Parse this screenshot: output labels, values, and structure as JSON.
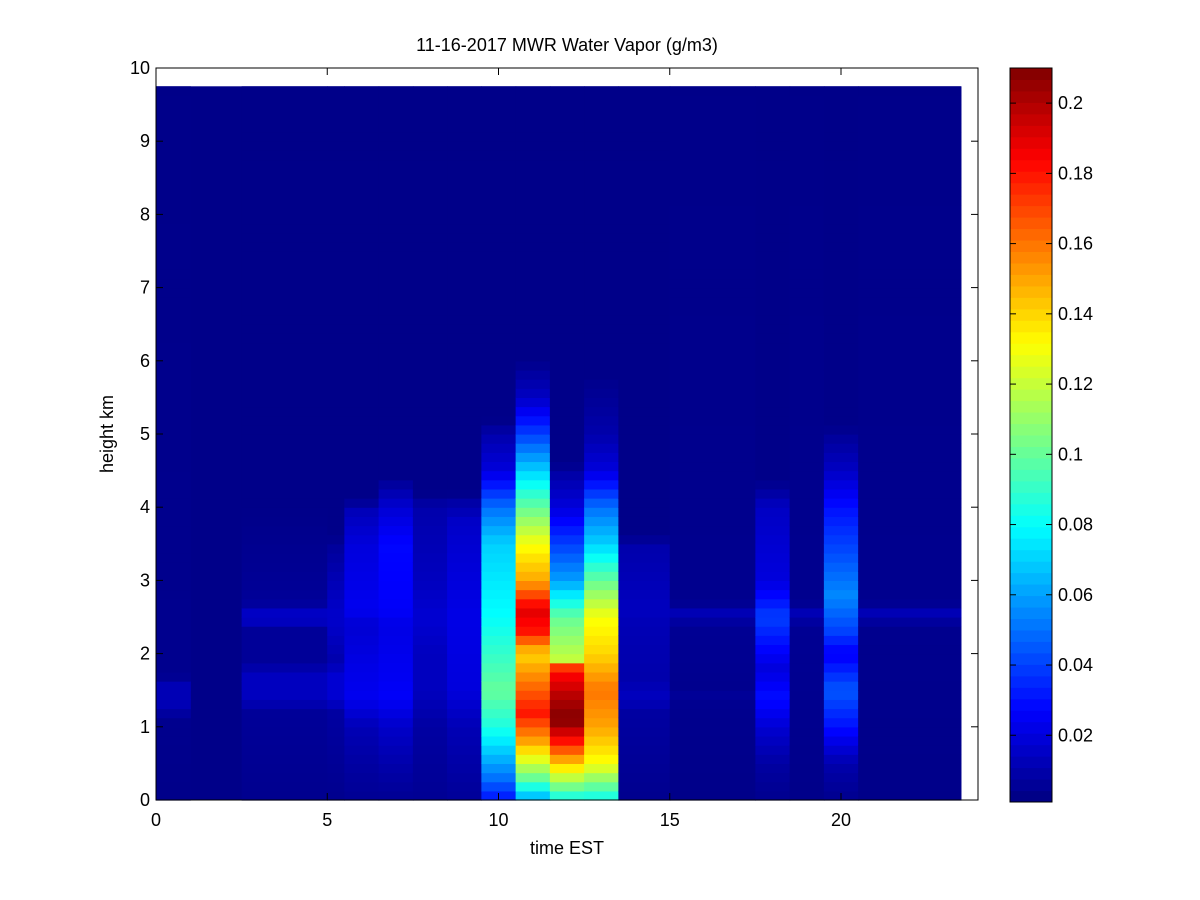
{
  "chart_data": {
    "type": "heatmap",
    "title": "11-16-2017 MWR Water Vapor (g/m3)",
    "xlabel": "time EST",
    "ylabel": "height km",
    "xlim": [
      0,
      24
    ],
    "ylim": [
      0,
      10
    ],
    "x_ticks": [
      "0",
      "5",
      "10",
      "15",
      "20"
    ],
    "y_ticks": [
      "0",
      "1",
      "2",
      "3",
      "4",
      "5",
      "6",
      "7",
      "8",
      "9",
      "10"
    ],
    "colorbar": {
      "range": [
        0.001,
        0.21
      ],
      "colormap": "jet",
      "ticks": [
        "0.02",
        "0.04",
        "0.06",
        "0.08",
        "0.1",
        "0.12",
        "0.14",
        "0.16",
        "0.18",
        "0.2"
      ]
    },
    "grid": false,
    "data_extent": {
      "x": [
        0,
        23.5
      ],
      "y": [
        0,
        9.75
      ]
    },
    "background_value": 0.003,
    "column_width_hours": 1,
    "band_profiles": [
      {
        "x": [
          0,
          1
        ],
        "profile": [
          [
            0,
            0.003
          ],
          [
            1.1,
            0.004
          ],
          [
            1.3,
            0.012
          ],
          [
            1.6,
            0.012
          ],
          [
            1.7,
            0.004
          ],
          [
            10,
            0.003
          ]
        ]
      },
      {
        "x": [
          2.5,
          5
        ],
        "profile": [
          [
            0,
            0.004
          ],
          [
            1.2,
            0.006
          ],
          [
            1.4,
            0.014
          ],
          [
            1.7,
            0.014
          ],
          [
            1.9,
            0.006
          ],
          [
            2.35,
            0.006
          ],
          [
            2.45,
            0.015
          ],
          [
            2.6,
            0.015
          ],
          [
            2.7,
            0.006
          ],
          [
            4,
            0.003
          ],
          [
            10,
            0.003
          ]
        ]
      },
      {
        "x": [
          5,
          5.5
        ],
        "profile": [
          [
            0,
            0.004
          ],
          [
            1.2,
            0.008
          ],
          [
            1.4,
            0.018
          ],
          [
            1.7,
            0.018
          ],
          [
            1.9,
            0.01
          ],
          [
            2.4,
            0.016
          ],
          [
            2.6,
            0.016
          ],
          [
            3,
            0.012
          ],
          [
            3.5,
            0.006
          ],
          [
            3.6,
            0.003
          ],
          [
            10,
            0.003
          ]
        ]
      },
      {
        "x": [
          5.5,
          6.5
        ],
        "profile": [
          [
            0,
            0.005
          ],
          [
            0.5,
            0.008
          ],
          [
            1,
            0.012
          ],
          [
            1.4,
            0.024
          ],
          [
            1.8,
            0.022
          ],
          [
            2.4,
            0.018
          ],
          [
            2.6,
            0.024
          ],
          [
            3.5,
            0.02
          ],
          [
            4,
            0.012
          ],
          [
            4.1,
            0.003
          ],
          [
            10,
            0.003
          ]
        ]
      },
      {
        "x": [
          6.5,
          7.5
        ],
        "profile": [
          [
            0,
            0.005
          ],
          [
            0.5,
            0.01
          ],
          [
            1,
            0.016
          ],
          [
            1.4,
            0.026
          ],
          [
            1.8,
            0.024
          ],
          [
            2.4,
            0.022
          ],
          [
            2.6,
            0.026
          ],
          [
            3.5,
            0.028
          ],
          [
            4,
            0.018
          ],
          [
            4.3,
            0.008
          ],
          [
            4.4,
            0.003
          ],
          [
            10,
            0.003
          ]
        ]
      },
      {
        "x": [
          7.5,
          8.5
        ],
        "profile": [
          [
            0,
            0.005
          ],
          [
            1,
            0.008
          ],
          [
            1.5,
            0.014
          ],
          [
            2,
            0.014
          ],
          [
            2.5,
            0.018
          ],
          [
            3,
            0.014
          ],
          [
            4,
            0.01
          ],
          [
            4.2,
            0.003
          ],
          [
            10,
            0.003
          ]
        ]
      },
      {
        "x": [
          8.5,
          9.5
        ],
        "profile": [
          [
            0,
            0.006
          ],
          [
            1,
            0.012
          ],
          [
            1.5,
            0.02
          ],
          [
            2.5,
            0.022
          ],
          [
            3,
            0.02
          ],
          [
            3.8,
            0.016
          ],
          [
            4.1,
            0.008
          ],
          [
            4.2,
            0.003
          ],
          [
            10,
            0.003
          ]
        ]
      },
      {
        "x": [
          9.5,
          10.5
        ],
        "profile": [
          [
            0,
            0.03
          ],
          [
            0.3,
            0.05
          ],
          [
            0.7,
            0.07
          ],
          [
            1,
            0.085
          ],
          [
            1.5,
            0.1
          ],
          [
            2,
            0.09
          ],
          [
            2.5,
            0.08
          ],
          [
            3.5,
            0.07
          ],
          [
            4,
            0.05
          ],
          [
            4.5,
            0.02
          ],
          [
            5,
            0.01
          ],
          [
            5.2,
            0.003
          ],
          [
            10,
            0.003
          ]
        ]
      },
      {
        "x": [
          10.5,
          11.5
        ],
        "profile": [
          [
            0,
            0.06
          ],
          [
            0.3,
            0.1
          ],
          [
            0.8,
            0.15
          ],
          [
            1.2,
            0.18
          ],
          [
            1.6,
            0.16
          ],
          [
            2,
            0.14
          ],
          [
            2.3,
            0.18
          ],
          [
            2.6,
            0.19
          ],
          [
            3,
            0.15
          ],
          [
            3.5,
            0.13
          ],
          [
            4,
            0.1
          ],
          [
            4.5,
            0.07
          ],
          [
            5,
            0.04
          ],
          [
            5.5,
            0.015
          ],
          [
            5.9,
            0.006
          ],
          [
            6,
            0.003
          ],
          [
            10,
            0.003
          ]
        ]
      },
      {
        "x": [
          11.5,
          12.5
        ],
        "profile": [
          [
            0,
            0.08
          ],
          [
            0.4,
            0.13
          ],
          [
            0.8,
            0.18
          ],
          [
            1.1,
            0.21
          ],
          [
            1.4,
            0.2
          ],
          [
            1.8,
            0.18
          ],
          [
            1.9,
            0.12
          ],
          [
            2.5,
            0.1
          ],
          [
            3,
            0.06
          ],
          [
            3.5,
            0.04
          ],
          [
            4,
            0.02
          ],
          [
            4.5,
            0.008
          ],
          [
            4.6,
            0.003
          ],
          [
            10,
            0.003
          ]
        ]
      },
      {
        "x": [
          12.5,
          13.5
        ],
        "profile": [
          [
            0,
            0.08
          ],
          [
            0.5,
            0.13
          ],
          [
            1,
            0.15
          ],
          [
            1.5,
            0.16
          ],
          [
            2,
            0.14
          ],
          [
            2.5,
            0.13
          ],
          [
            3,
            0.1
          ],
          [
            3.5,
            0.07
          ],
          [
            4,
            0.05
          ],
          [
            4.5,
            0.02
          ],
          [
            5,
            0.01
          ],
          [
            5.7,
            0.004
          ],
          [
            5.8,
            0.003
          ],
          [
            10,
            0.003
          ]
        ]
      },
      {
        "x": [
          13.5,
          15
        ],
        "profile": [
          [
            0,
            0.004
          ],
          [
            1.2,
            0.008
          ],
          [
            1.4,
            0.014
          ],
          [
            1.7,
            0.01
          ],
          [
            2.4,
            0.012
          ],
          [
            2.6,
            0.014
          ],
          [
            3.5,
            0.01
          ],
          [
            3.6,
            0.003
          ],
          [
            10,
            0.003
          ]
        ]
      },
      {
        "x": [
          15,
          17.5
        ],
        "profile": [
          [
            0,
            0.003
          ],
          [
            1.3,
            0.004
          ],
          [
            1.4,
            0.007
          ],
          [
            1.5,
            0.004
          ],
          [
            2.4,
            0.005
          ],
          [
            2.5,
            0.012
          ],
          [
            2.6,
            0.012
          ],
          [
            2.7,
            0.004
          ],
          [
            10,
            0.003
          ]
        ]
      },
      {
        "x": [
          17.5,
          18.5
        ],
        "profile": [
          [
            0,
            0.004
          ],
          [
            0.5,
            0.008
          ],
          [
            1,
            0.018
          ],
          [
            1.4,
            0.03
          ],
          [
            1.8,
            0.02
          ],
          [
            2.5,
            0.04
          ],
          [
            3,
            0.02
          ],
          [
            4,
            0.015
          ],
          [
            4.3,
            0.005
          ],
          [
            4.4,
            0.003
          ],
          [
            10,
            0.003
          ]
        ]
      },
      {
        "x": [
          18.5,
          19.5
        ],
        "profile": [
          [
            0,
            0.003
          ],
          [
            2.4,
            0.005
          ],
          [
            2.5,
            0.012
          ],
          [
            2.6,
            0.012
          ],
          [
            2.7,
            0.004
          ],
          [
            10,
            0.003
          ]
        ]
      },
      {
        "x": [
          19.5,
          20.5
        ],
        "profile": [
          [
            0,
            0.004
          ],
          [
            0.5,
            0.01
          ],
          [
            1,
            0.03
          ],
          [
            1.5,
            0.045
          ],
          [
            2,
            0.025
          ],
          [
            2.3,
            0.04
          ],
          [
            2.8,
            0.055
          ],
          [
            3.5,
            0.04
          ],
          [
            4,
            0.03
          ],
          [
            4.5,
            0.015
          ],
          [
            5,
            0.006
          ],
          [
            5.1,
            0.003
          ],
          [
            10,
            0.003
          ]
        ]
      },
      {
        "x": [
          20.5,
          23.5
        ],
        "profile": [
          [
            0,
            0.003
          ],
          [
            2.4,
            0.004
          ],
          [
            2.5,
            0.012
          ],
          [
            2.6,
            0.012
          ],
          [
            2.7,
            0.004
          ],
          [
            10,
            0.003
          ]
        ]
      }
    ]
  }
}
